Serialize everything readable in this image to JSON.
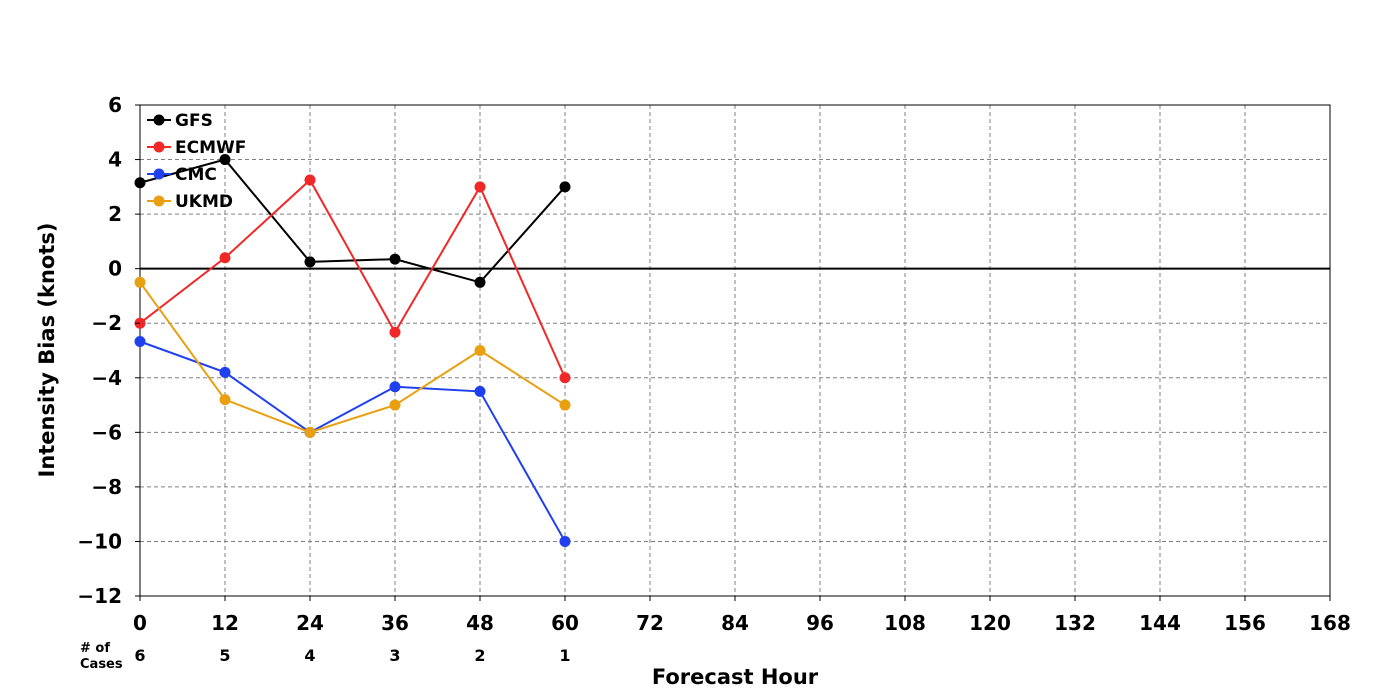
{
  "chart_data": {
    "type": "line",
    "title": "",
    "xlabel": "Forecast Hour",
    "ylabel": "Intensity Bias (knots)",
    "xlim": [
      0,
      168
    ],
    "ylim": [
      -12,
      6
    ],
    "xticks": [
      0,
      12,
      24,
      36,
      48,
      60,
      72,
      84,
      96,
      108,
      120,
      132,
      144,
      156,
      168
    ],
    "yticks": [
      6,
      4,
      2,
      0,
      -2,
      -4,
      -6,
      -8,
      -10,
      -12
    ],
    "ytick_labels": [
      "6",
      "4",
      "2",
      "0",
      "−2",
      "−4",
      "−6",
      "−8",
      "−10",
      "−12"
    ],
    "grid": true,
    "legend_position": "top-left",
    "x": [
      0,
      12,
      24,
      36,
      48,
      60
    ],
    "series": [
      {
        "name": "GFS",
        "color": "#000000",
        "values": [
          3.15,
          4.0,
          0.25,
          0.35,
          -0.5,
          3.0
        ]
      },
      {
        "name": "ECMWF",
        "color": "#f02828",
        "values": [
          -2.0,
          0.4,
          3.25,
          -2.33,
          3.0,
          -4.0
        ]
      },
      {
        "name": "CMC",
        "color": "#2040f0",
        "values": [
          -2.67,
          -3.8,
          -6.0,
          -4.33,
          -4.5,
          -10.0
        ]
      },
      {
        "name": "UKMD",
        "color": "#e8a010",
        "values": [
          -0.5,
          -4.8,
          -6.0,
          -5.0,
          -3.0,
          -5.0
        ]
      }
    ],
    "cases": {
      "header": "# of\nCases",
      "header_lines": [
        "# of",
        "Cases"
      ],
      "hours": [
        0,
        12,
        24,
        36,
        48,
        60
      ],
      "values": [
        "6",
        "5",
        "4",
        "3",
        "2",
        "1"
      ]
    }
  }
}
